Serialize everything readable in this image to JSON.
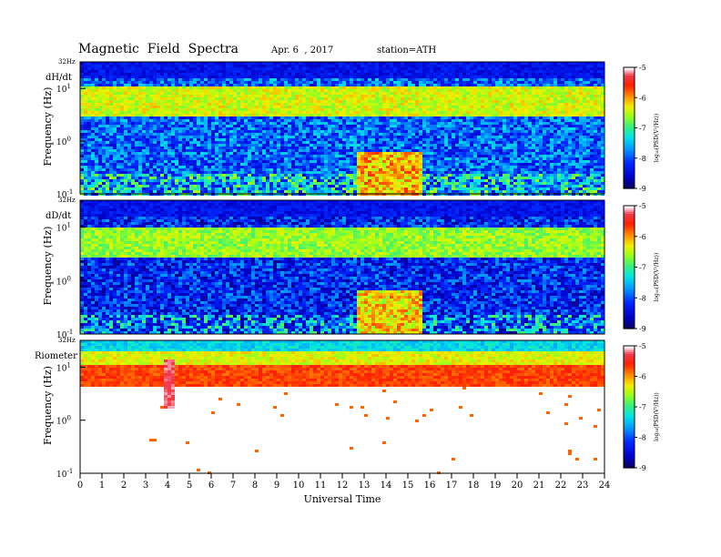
{
  "header": {
    "title": "Magnetic  Field  Spectra",
    "date": "Apr. 6  , 2017",
    "station": "station=ATH"
  },
  "chart_data": [
    {
      "type": "heatmap",
      "panel_label": "dH/dt",
      "ylabel": "Frequency  (Hz)",
      "yscale": "log",
      "ylim": [
        0.1,
        32
      ],
      "y_ticks": [
        {
          "base": "10",
          "exp": "-1"
        },
        {
          "base": "10",
          "exp": "0"
        },
        {
          "base": "10",
          "exp": "1"
        }
      ],
      "y_top_label": "32Hz",
      "xlim": [
        0,
        24
      ],
      "colorbar": {
        "ticks": [
          "-5",
          "-6",
          "-7",
          "-8",
          "-9"
        ],
        "range": [
          -9,
          -5
        ],
        "label": "log₁₀(PSD(V²/Hz))"
      },
      "features": {
        "background_level": -7.9,
        "high_freq_band_level": -6.4,
        "event_bursts_UT": [
          [
            12.5,
            14.2
          ],
          [
            14.3,
            15.6
          ]
        ],
        "event_burst_level": -6.2
      }
    },
    {
      "type": "heatmap",
      "panel_label": "dD/dt",
      "ylabel": "Frequency  (Hz)",
      "yscale": "log",
      "ylim": [
        0.1,
        32
      ],
      "y_ticks": [
        {
          "base": "10",
          "exp": "-1"
        },
        {
          "base": "10",
          "exp": "0"
        },
        {
          "base": "10",
          "exp": "1"
        }
      ],
      "y_top_label": "32Hz",
      "xlim": [
        0,
        24
      ],
      "colorbar": {
        "ticks": [
          "-5",
          "-6",
          "-7",
          "-8",
          "-9"
        ],
        "range": [
          -9,
          -5
        ],
        "label": "log₁₀(PSD(V²/Hz))"
      },
      "features": {
        "background_level": -8.2,
        "high_freq_band_level": -6.6,
        "event_bursts_UT": [
          [
            12.5,
            14.2
          ],
          [
            14.3,
            15.6
          ]
        ],
        "event_burst_level": -6.3
      }
    },
    {
      "type": "heatmap",
      "panel_label": "Riometer",
      "ylabel": "Frequency  (Hz)",
      "yscale": "log",
      "ylim": [
        0.1,
        32
      ],
      "y_ticks": [
        {
          "base": "10",
          "exp": "-1"
        },
        {
          "base": "10",
          "exp": "0"
        },
        {
          "base": "10",
          "exp": "1"
        }
      ],
      "y_top_label": "32Hz",
      "xlim": [
        0,
        24
      ],
      "colorbar": {
        "ticks": [
          "-5",
          "-6",
          "-7",
          "-8",
          "-9"
        ],
        "range": [
          -9,
          -5
        ],
        "label": "log₁₀(PSD(V²/Hz))"
      },
      "features": {
        "background_level": "white",
        "high_freq_band_level": -6.0,
        "peak_UT": 4.0
      }
    }
  ],
  "x_axis": {
    "label": "Universal Time",
    "ticks": [
      "0",
      "1",
      "2",
      "3",
      "4",
      "5",
      "6",
      "7",
      "8",
      "9",
      "10",
      "11",
      "12",
      "13",
      "14",
      "15",
      "16",
      "17",
      "18",
      "19",
      "20",
      "21",
      "22",
      "23",
      "24"
    ]
  }
}
